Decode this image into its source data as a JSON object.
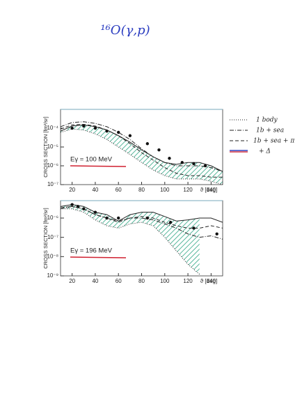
{
  "title": "¹⁶O(γ,p)",
  "chart_data": [
    {
      "type": "line",
      "ylabel": "CROSS SECTION [fm²/sr]",
      "xlabel": "ϑ [deg]",
      "annotation": "Eγ = 100 MeV",
      "log": true,
      "xlim": [
        10,
        150
      ],
      "ylim": [
        1e-07,
        0.001
      ],
      "xticks": [
        20,
        40,
        60,
        80,
        100,
        120,
        140
      ],
      "yticks": [
        {
          "value": 1e-07,
          "label": "10⁻⁷"
        },
        {
          "value": 1e-06,
          "label": "10⁻⁶"
        },
        {
          "value": 1e-05,
          "label": "10⁻⁵"
        },
        {
          "value": 0.0001,
          "label": "10⁻⁴"
        }
      ],
      "x": [
        10,
        20,
        30,
        40,
        50,
        60,
        70,
        80,
        90,
        100,
        110,
        120,
        130,
        140,
        150
      ],
      "series": [
        {
          "name": "1 body",
          "style": "dotted",
          "color": "#222222",
          "values": [
            6e-05,
            9e-05,
            8e-05,
            5e-05,
            2.5e-05,
            1e-05,
            4e-06,
            1.5e-06,
            6e-07,
            3e-07,
            2e-07,
            2e-07,
            2e-07,
            1.5e-07,
            1e-07
          ]
        },
        {
          "name": "1b + sea",
          "style": "dashdot",
          "color": "#222222",
          "values": [
            0.00012,
            0.0002,
            0.00022,
            0.00018,
            0.00012,
            6e-05,
            2.5e-05,
            8e-06,
            3e-06,
            1.5e-06,
            1e-06,
            1e-06,
            1e-06,
            8e-07,
            5e-07
          ]
        },
        {
          "name": "1b + sea + π",
          "style": "dashed",
          "color": "#222222",
          "values": [
            9e-05,
            0.00015,
            0.00016,
            0.00013,
            8e-05,
            4e-05,
            1.5e-05,
            5e-06,
            2e-06,
            8e-07,
            4e-07,
            3e-07,
            3e-07,
            2.5e-07,
            2.5e-07
          ]
        },
        {
          "name": "+ Δ",
          "style": "solid",
          "color": "#222222",
          "values": [
            7e-05,
            0.00013,
            0.00015,
            0.00012,
            8e-05,
            4e-05,
            1.8e-05,
            7e-06,
            3e-06,
            1.5e-06,
            1.2e-06,
            1.5e-06,
            1.5e-06,
            1e-06,
            5e-07
          ]
        },
        {
          "style": "points",
          "color": "#111111",
          "x": [
            20,
            30,
            40,
            50,
            60,
            70,
            85,
            95,
            104,
            115,
            125,
            135
          ],
          "values": [
            0.0001,
            0.00013,
            0.0001,
            7e-05,
            6e-05,
            4e-05,
            1.5e-05,
            7e-06,
            2.5e-06,
            1.5e-06,
            1.3e-06,
            1e-06
          ]
        }
      ]
    },
    {
      "type": "line",
      "ylabel": "CROSS SECTION [fm²/sr]",
      "xlabel": "ϑ [deg]",
      "annotation": "Eγ = 196 MeV",
      "log": true,
      "xlim": [
        10,
        150
      ],
      "ylim": [
        1e-09,
        8e-06
      ],
      "xticks": [
        20,
        40,
        60,
        80,
        100,
        120,
        140
      ],
      "yticks": [
        {
          "value": 1e-09,
          "label": "10⁻⁹"
        },
        {
          "value": 1e-08,
          "label": "10⁻⁸"
        },
        {
          "value": 1e-07,
          "label": "10⁻⁷"
        },
        {
          "value": 1e-06,
          "label": "10⁻⁶"
        }
      ],
      "x": [
        10,
        20,
        30,
        40,
        50,
        60,
        70,
        80,
        90,
        100,
        110,
        120,
        130,
        140,
        150
      ],
      "series": [
        {
          "style": "dotted",
          "color": "#222222",
          "values": [
            3e-06,
            3e-06,
            2e-06,
            8e-07,
            4e-07,
            3e-07,
            5e-07,
            6e-07,
            4e-07,
            1e-07,
            2e-08,
            4e-09,
            1.2e-09,
            null,
            null
          ]
        },
        {
          "style": "dashdot",
          "color": "#222222",
          "values": [
            3e-06,
            4e-06,
            3e-06,
            1.5e-06,
            1e-06,
            7e-07,
            1e-06,
            1e-06,
            8e-07,
            5e-07,
            3e-07,
            1.5e-07,
            1e-07,
            1.2e-07,
            8e-08
          ]
        },
        {
          "style": "dashed",
          "color": "#222222",
          "values": [
            3.5e-06,
            4e-06,
            3e-06,
            1.5e-06,
            1e-06,
            6e-07,
            1e-06,
            1.2e-06,
            1e-06,
            6e-07,
            4e-07,
            3e-07,
            3e-07,
            4e-07,
            3e-07
          ]
        },
        {
          "style": "solid",
          "color": "#222222",
          "values": [
            4e-06,
            5e-06,
            4e-06,
            2e-06,
            1.5e-06,
            7e-07,
            1.5e-06,
            2e-06,
            2e-06,
            1.2e-06,
            7e-07,
            8e-07,
            1e-06,
            1e-06,
            6e-07
          ]
        },
        {
          "style": "points",
          "color": "#111111",
          "x": [
            20,
            25,
            30,
            40,
            50,
            60,
            85,
            105,
            125,
            145
          ],
          "values": [
            5e-06,
            4e-06,
            3e-06,
            2e-06,
            1e-06,
            1e-06,
            1e-06,
            6e-07,
            3e-07,
            1.5e-07
          ]
        }
      ]
    }
  ]
}
